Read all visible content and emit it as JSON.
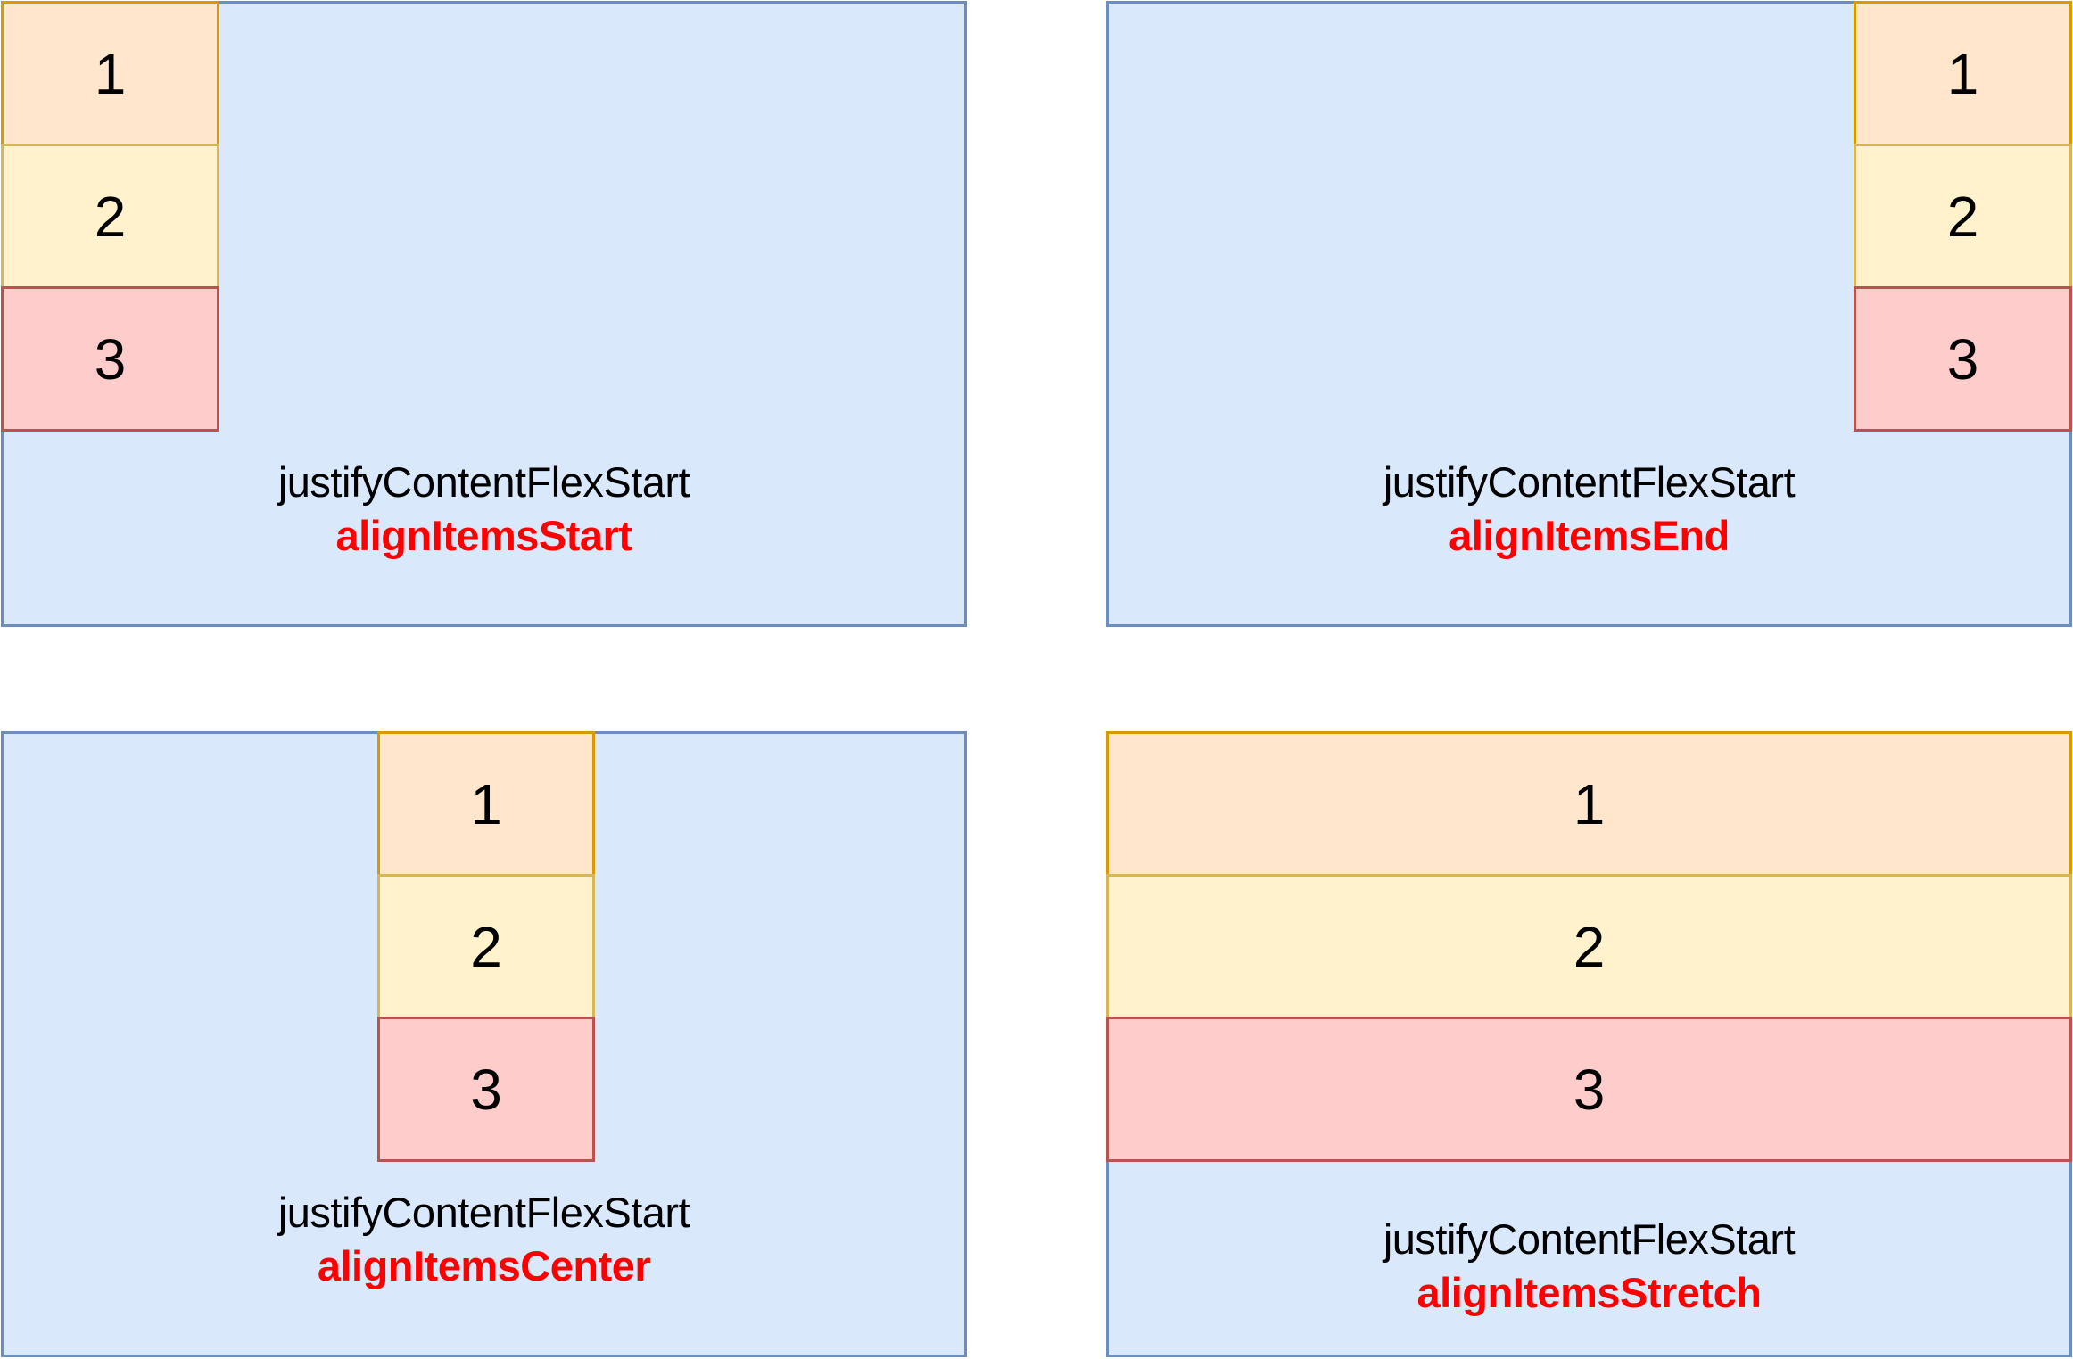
{
  "colors": {
    "panel_fill": "#dae8fc",
    "panel_border": "#6c8ebf",
    "item1_fill": "#ffe6cc",
    "item1_border": "#d79b00",
    "item2_fill": "#fff2cc",
    "item2_border": "#d6b656",
    "item3_fill": "#ffcccc",
    "item3_border": "#b85450",
    "highlight_text": "#ff0000"
  },
  "panels": [
    {
      "items": [
        "1",
        "2",
        "3"
      ],
      "justify_label": "justifyContentFlexStart",
      "align_label": "alignItemsStart"
    },
    {
      "items": [
        "1",
        "2",
        "3"
      ],
      "justify_label": "justifyContentFlexStart",
      "align_label": "alignItemsEnd"
    },
    {
      "items": [
        "1",
        "2",
        "3"
      ],
      "justify_label": "justifyContentFlexStart",
      "align_label": "alignItemsCenter"
    },
    {
      "items": [
        "1",
        "2",
        "3"
      ],
      "justify_label": "justifyContentFlexStart",
      "align_label": "alignItemsStretch"
    }
  ]
}
